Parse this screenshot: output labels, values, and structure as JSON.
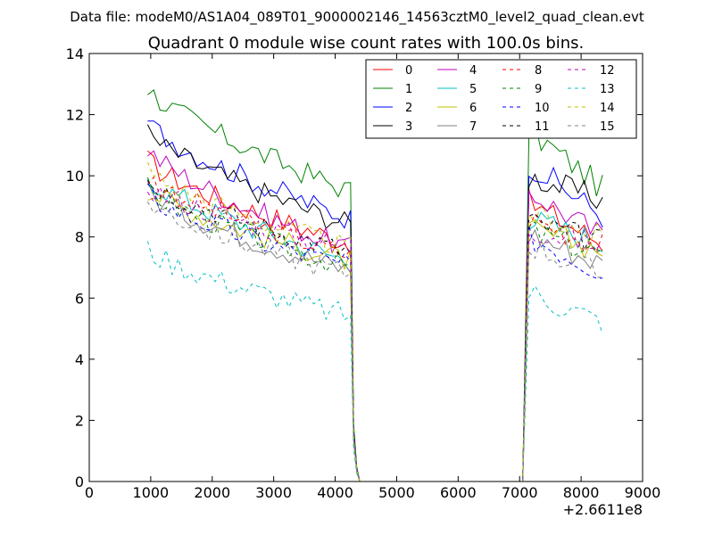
{
  "chart_data": {
    "type": "line",
    "suptitle": "Data file: modeM0/AS1A04_089T01_9000002146_14563cztM0_level2_quad_clean.evt",
    "title": "Quadrant 0 module wise count rates with 100.0s bins.",
    "xlabel": "",
    "ylabel": "",
    "x_offset_label": "+2.6611e8",
    "xlim": [
      0,
      9000
    ],
    "ylim": [
      0,
      14
    ],
    "xticks": [
      0,
      1000,
      2000,
      3000,
      4000,
      5000,
      6000,
      7000,
      8000,
      9000
    ],
    "yticks": [
      0,
      2,
      4,
      6,
      8,
      10,
      12,
      14
    ],
    "legend_position": "top-right",
    "segments": [
      {
        "start": 950,
        "end": 4250,
        "step": 100
      },
      {
        "start": 7150,
        "end": 8350,
        "step": 100
      }
    ],
    "drop_points": [
      [
        4300,
        1.6
      ],
      [
        4350,
        0.4
      ],
      [
        4400,
        0
      ]
    ],
    "rise_point": [
      7050,
      0
    ],
    "series": [
      {
        "name": "0",
        "color": "#ff0000",
        "dash": "solid",
        "start": 10.5,
        "end": 7.8,
        "end2": 7.8
      },
      {
        "name": "1",
        "color": "#008000",
        "dash": "solid",
        "start": 12.9,
        "end": 9.5,
        "end2": 9.6
      },
      {
        "name": "2",
        "color": "#0000ff",
        "dash": "solid",
        "start": 11.8,
        "end": 8.6,
        "end2": 8.7
      },
      {
        "name": "3",
        "color": "#000000",
        "dash": "solid",
        "start": 11.4,
        "end": 8.4,
        "end2": 9.2
      },
      {
        "name": "4",
        "color": "#bf00bf",
        "dash": "solid",
        "start": 10.9,
        "end": 7.6,
        "end2": 8.0
      },
      {
        "name": "5",
        "color": "#00bfbf",
        "dash": "solid",
        "start": 10.0,
        "end": 7.2,
        "end2": 7.8
      },
      {
        "name": "6",
        "color": "#bfbf00",
        "dash": "solid",
        "start": 9.6,
        "end": 7.2,
        "end2": 7.6
      },
      {
        "name": "7",
        "color": "#808080",
        "dash": "solid",
        "start": 9.5,
        "end": 6.9,
        "end2": 7.1
      },
      {
        "name": "8",
        "color": "#ff0000",
        "dash": "dashed",
        "start": 10.0,
        "end": 7.4,
        "end2": 7.7
      },
      {
        "name": "9",
        "color": "#008000",
        "dash": "dashed",
        "start": 9.6,
        "end": 7.0,
        "end2": 7.4
      },
      {
        "name": "10",
        "color": "#0000ff",
        "dash": "dashed",
        "start": 9.4,
        "end": 7.0,
        "end2": 6.9
      },
      {
        "name": "11",
        "color": "#000000",
        "dash": "dashed",
        "start": 9.9,
        "end": 7.5,
        "end2": 7.8
      },
      {
        "name": "12",
        "color": "#bf00bf",
        "dash": "dashed",
        "start": 9.7,
        "end": 7.6,
        "end2": 7.7
      },
      {
        "name": "13",
        "color": "#00bfbf",
        "dash": "dashed",
        "start": 7.6,
        "end": 5.4,
        "end2": 5.2
      },
      {
        "name": "14",
        "color": "#bfbf00",
        "dash": "dashed",
        "start": 10.2,
        "end": 7.6,
        "end2": 7.9
      },
      {
        "name": "15",
        "color": "#808080",
        "dash": "dashed",
        "start": 9.2,
        "end": 6.8,
        "end2": 6.7
      }
    ]
  }
}
